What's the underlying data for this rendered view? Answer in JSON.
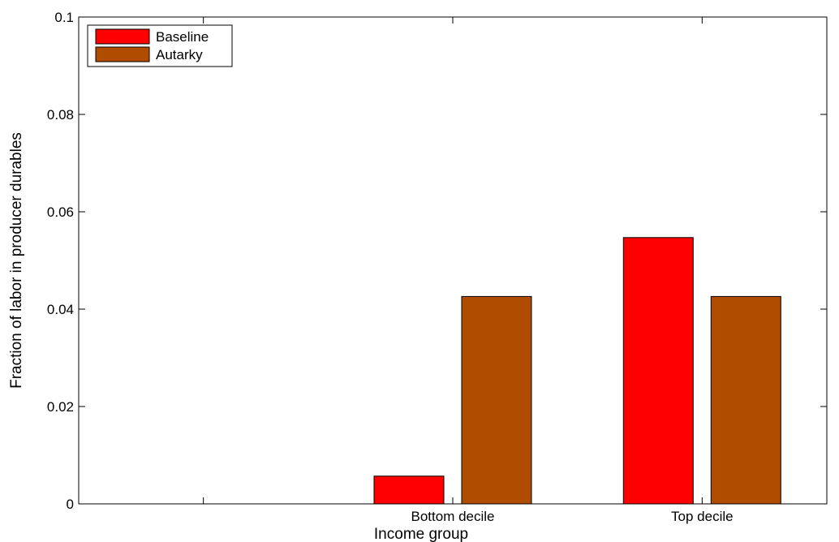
{
  "chart_data": {
    "type": "bar",
    "title": "",
    "xlabel": "Income group",
    "ylabel": "Fraction of labor in producer durables",
    "categories": [
      "",
      "Bottom decile",
      "Top decile"
    ],
    "series": [
      {
        "name": "Baseline",
        "color": "#ff0000",
        "values": [
          null,
          0.0057,
          0.0547
        ]
      },
      {
        "name": "Autarky",
        "color": "#b04c00",
        "values": [
          null,
          0.0426,
          0.0426
        ]
      }
    ],
    "ylim": [
      0,
      0.1
    ],
    "yticks": [
      "0",
      "0.02",
      "0.04",
      "0.06",
      "0.08",
      "0.1"
    ],
    "legend_position": "top-left",
    "grid": false
  }
}
